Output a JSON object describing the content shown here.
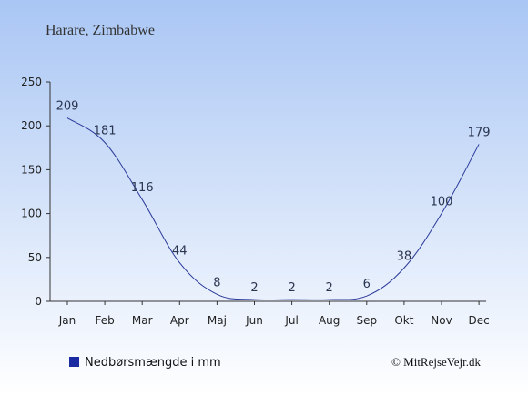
{
  "page": {
    "title": "Harare, Zimbabwe",
    "legend_label": "Nedbørsmængde i mm",
    "credit": "© MitRejseVejr.dk"
  },
  "colors": {
    "background_top": "#a9c6f4",
    "background_bottom": "#ffffff",
    "line": "#2a3a9a",
    "legend_swatch": "#1a2aa0",
    "axis": "#333333"
  },
  "chart_data": {
    "type": "line",
    "title": "",
    "xlabel": "",
    "ylabel": "",
    "categories": [
      "Jan",
      "Feb",
      "Mar",
      "Apr",
      "Maj",
      "Jun",
      "Jul",
      "Aug",
      "Sep",
      "Okt",
      "Nov",
      "Dec"
    ],
    "series": [
      {
        "name": "Nedbørsmængde i mm",
        "values": [
          209,
          181,
          116,
          44,
          8,
          2,
          2,
          2,
          6,
          38,
          100,
          179
        ]
      }
    ],
    "ylim": [
      0,
      250
    ],
    "yticks": [
      0,
      50,
      100,
      150,
      200,
      250
    ],
    "grid": false,
    "legend_position": "bottom-left"
  }
}
